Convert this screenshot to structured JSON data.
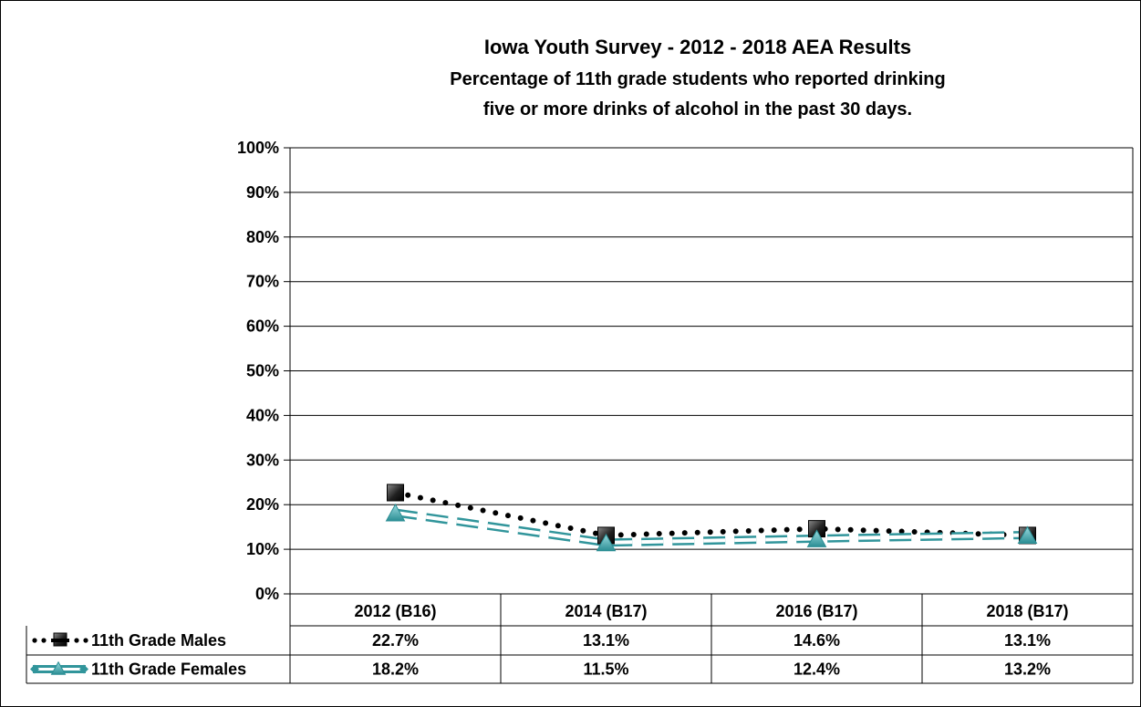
{
  "chart_data": {
    "type": "line",
    "title": "Iowa Youth Survey - 2012 - 2018 AEA Results",
    "subtitle": [
      "Percentage of 11th grade students who reported drinking",
      "five or more drinks of alcohol in the past 30 days."
    ],
    "categories": [
      "2012 (B16)",
      "2014 (B17)",
      "2016 (B17)",
      "2018 (B17)"
    ],
    "ylim": [
      0,
      100
    ],
    "yticks": [
      0,
      10,
      20,
      30,
      40,
      50,
      60,
      70,
      80,
      90,
      100
    ],
    "ytick_labels": [
      "0%",
      "10%",
      "20%",
      "30%",
      "40%",
      "50%",
      "60%",
      "70%",
      "80%",
      "90%",
      "100%"
    ],
    "grid": true,
    "legend": "data-table",
    "series": [
      {
        "name": "11th Grade Males",
        "values": [
          22.7,
          13.1,
          14.6,
          13.1
        ],
        "labels": [
          "22.7%",
          "13.1%",
          "14.6%",
          "13.1%"
        ],
        "color": "#000000",
        "line_style": "dotted",
        "marker": "square"
      },
      {
        "name": "11th Grade Females",
        "values": [
          18.2,
          11.5,
          12.4,
          13.2
        ],
        "labels": [
          "18.2%",
          "11.5%",
          "12.4%",
          "13.2%"
        ],
        "color": "#31959b",
        "line_style": "double-dashed",
        "marker": "triangle"
      }
    ]
  }
}
